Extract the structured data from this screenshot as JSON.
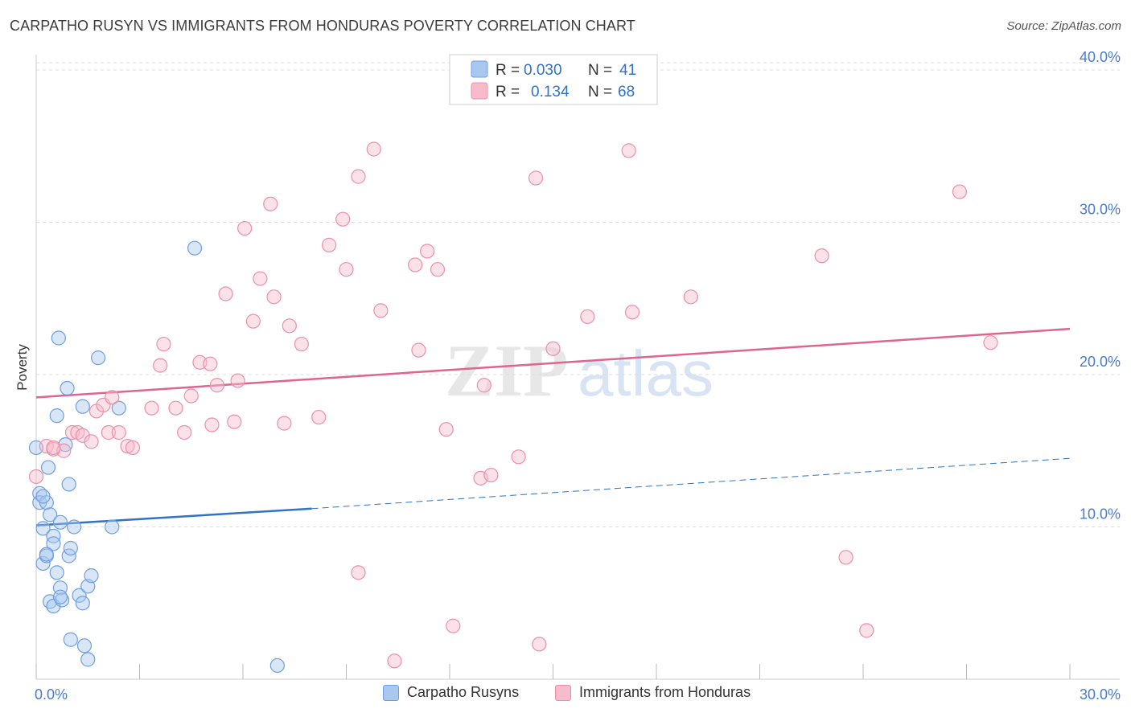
{
  "title": "CARPATHO RUSYN VS IMMIGRANTS FROM HONDURAS POVERTY CORRELATION CHART",
  "source": "Source: ZipAtlas.com",
  "watermark": {
    "zip": "ZIP",
    "atlas": "atlas"
  },
  "colors": {
    "blue_fill": "#a9c8f0",
    "blue_stroke": "#6f9fe0",
    "blue_line": "#2f72c9",
    "pink_fill": "#f7bccb",
    "pink_stroke": "#ec8fab",
    "pink_line": "#e0648f",
    "tick_text": "#4a7cc9",
    "grid": "#dddddd"
  },
  "legend": {
    "rows": [
      {
        "r_label": "R =",
        "r_value": "0.030",
        "n_label": "N =",
        "n_value": "41"
      },
      {
        "r_label": "R =",
        "r_value": "0.134",
        "n_label": "N =",
        "n_value": "68"
      }
    ]
  },
  "chart_data": {
    "type": "scatter",
    "title": "CARPATHO RUSYN VS IMMIGRANTS FROM HONDURAS POVERTY CORRELATION CHART",
    "xlabel": "",
    "ylabel": "Poverty",
    "xlim": [
      0,
      30
    ],
    "ylim": [
      0,
      41
    ],
    "x_ticks": [
      0,
      3,
      6,
      9,
      12,
      15,
      18,
      21,
      24,
      27,
      30
    ],
    "x_tick_labels": [
      {
        "value": 0,
        "label": "0.0%"
      },
      {
        "value": 30,
        "label": "30.0%"
      }
    ],
    "y_ticks": [
      {
        "value": 10,
        "label": "10.0%"
      },
      {
        "value": 20,
        "label": "20.0%"
      },
      {
        "value": 30,
        "label": "30.0%"
      },
      {
        "value": 40,
        "label": "40.0%"
      }
    ],
    "grid": true,
    "series": [
      {
        "name": "Carpatho Rusyns",
        "color": "blue",
        "r": 0.03,
        "n": 41,
        "trend": {
          "x_start": 0,
          "y_start": 10.1,
          "x_solid_end": 8,
          "y_solid_end": 11.2,
          "x_end": 30,
          "y_end": 14.5
        },
        "points": [
          [
            0.0,
            15.2
          ],
          [
            0.1,
            12.2
          ],
          [
            0.1,
            11.6
          ],
          [
            0.2,
            9.9
          ],
          [
            0.2,
            7.6
          ],
          [
            0.3,
            8.1
          ],
          [
            0.3,
            11.6
          ],
          [
            0.35,
            13.9
          ],
          [
            0.4,
            5.1
          ],
          [
            0.4,
            10.8
          ],
          [
            0.5,
            9.4
          ],
          [
            0.5,
            8.9
          ],
          [
            0.5,
            4.8
          ],
          [
            0.6,
            7.0
          ],
          [
            0.65,
            22.4
          ],
          [
            0.7,
            10.3
          ],
          [
            0.7,
            6.0
          ],
          [
            0.75,
            5.2
          ],
          [
            0.6,
            17.3
          ],
          [
            0.85,
            15.4
          ],
          [
            0.9,
            19.1
          ],
          [
            0.95,
            12.8
          ],
          [
            0.95,
            8.1
          ],
          [
            1.0,
            8.6
          ],
          [
            1.1,
            10.0
          ],
          [
            1.0,
            2.6
          ],
          [
            1.25,
            5.5
          ],
          [
            1.35,
            17.9
          ],
          [
            1.35,
            5.0
          ],
          [
            1.4,
            2.2
          ],
          [
            1.5,
            6.1
          ],
          [
            1.5,
            1.3
          ],
          [
            1.6,
            6.8
          ],
          [
            1.8,
            21.1
          ],
          [
            2.2,
            10.0
          ],
          [
            2.4,
            17.8
          ],
          [
            4.6,
            28.3
          ],
          [
            7.0,
            0.9
          ],
          [
            0.3,
            8.2
          ],
          [
            0.2,
            12.0
          ],
          [
            0.7,
            5.4
          ]
        ]
      },
      {
        "name": "Immigrants from Honduras",
        "color": "pink",
        "r": 0.134,
        "n": 68,
        "trend": {
          "x_start": 0,
          "y_start": 18.5,
          "x_end": 30,
          "y_end": 23.0
        },
        "points": [
          [
            0.0,
            13.3
          ],
          [
            0.3,
            15.3
          ],
          [
            0.5,
            15.1
          ],
          [
            0.8,
            15.0
          ],
          [
            1.05,
            16.2
          ],
          [
            1.2,
            16.2
          ],
          [
            1.35,
            16.0
          ],
          [
            1.6,
            15.6
          ],
          [
            1.75,
            17.6
          ],
          [
            1.95,
            18.0
          ],
          [
            2.2,
            18.5
          ],
          [
            2.1,
            16.2
          ],
          [
            2.4,
            16.2
          ],
          [
            2.65,
            15.3
          ],
          [
            2.8,
            15.2
          ],
          [
            3.35,
            17.8
          ],
          [
            3.7,
            22.0
          ],
          [
            3.6,
            20.6
          ],
          [
            4.05,
            17.8
          ],
          [
            4.3,
            16.2
          ],
          [
            4.5,
            18.6
          ],
          [
            4.75,
            20.8
          ],
          [
            5.05,
            20.7
          ],
          [
            5.1,
            16.7
          ],
          [
            5.25,
            19.3
          ],
          [
            5.5,
            25.3
          ],
          [
            5.75,
            16.9
          ],
          [
            5.85,
            19.6
          ],
          [
            6.05,
            29.6
          ],
          [
            6.3,
            23.5
          ],
          [
            6.5,
            26.3
          ],
          [
            6.8,
            31.2
          ],
          [
            6.9,
            25.1
          ],
          [
            7.2,
            16.8
          ],
          [
            7.35,
            23.2
          ],
          [
            7.7,
            22.0
          ],
          [
            8.2,
            17.2
          ],
          [
            8.5,
            28.5
          ],
          [
            8.9,
            30.2
          ],
          [
            9.0,
            26.9
          ],
          [
            9.35,
            7.0
          ],
          [
            9.35,
            33.0
          ],
          [
            9.8,
            34.8
          ],
          [
            10.0,
            24.2
          ],
          [
            10.4,
            1.2
          ],
          [
            11.0,
            27.2
          ],
          [
            11.1,
            21.6
          ],
          [
            11.35,
            28.1
          ],
          [
            11.65,
            26.9
          ],
          [
            11.9,
            16.4
          ],
          [
            12.1,
            3.5
          ],
          [
            12.9,
            13.2
          ],
          [
            13.0,
            19.3
          ],
          [
            13.2,
            13.4
          ],
          [
            14.0,
            14.6
          ],
          [
            14.5,
            32.9
          ],
          [
            14.6,
            2.3
          ],
          [
            15.0,
            21.7
          ],
          [
            16.0,
            23.8
          ],
          [
            17.2,
            34.7
          ],
          [
            17.3,
            24.1
          ],
          [
            19.0,
            25.1
          ],
          [
            22.8,
            27.8
          ],
          [
            23.5,
            8.0
          ],
          [
            24.1,
            3.2
          ],
          [
            26.8,
            32.0
          ],
          [
            27.7,
            22.1
          ],
          [
            0.5,
            15.2
          ]
        ]
      }
    ]
  },
  "bottom_legend": {
    "items": [
      {
        "label": "Carpatho Rusyns"
      },
      {
        "label": "Immigrants from Honduras"
      }
    ]
  }
}
